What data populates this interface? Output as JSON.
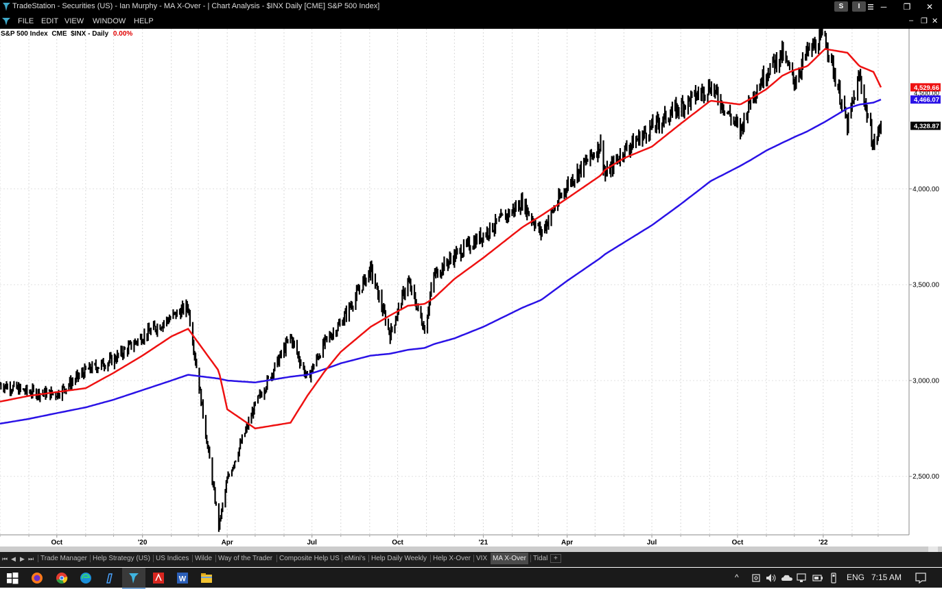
{
  "window": {
    "title": "TradeStation  - Securities (US) - Ian Murphy - MA X-Over - | Chart Analysis - $INX Daily [CME] S&P 500 Index]",
    "btn_s": "S",
    "btn_i": "I",
    "minimize": "─",
    "restore": "❐",
    "close": "✕"
  },
  "menu": {
    "items": [
      "FILE",
      "EDIT",
      "VIEW",
      "WINDOW",
      "HELP"
    ],
    "inner_minimize": "–",
    "inner_restore": "❐",
    "inner_close": "✕"
  },
  "symbol": {
    "name": "S&P 500 Index",
    "exchange": "CME",
    "ticker_interval": "$INX - Daily",
    "change": "0.00%"
  },
  "colors": {
    "price": "#000000",
    "ma_fast": "#ee1111",
    "ma_slow": "#2a12e6",
    "last_bg": "#000000"
  },
  "chart_data": {
    "type": "line",
    "title": "S&P 500 Index  CME  $INX - Daily",
    "xlabel": "",
    "ylabel": "",
    "ylim": [
      2195,
      4835
    ],
    "x_ticks": [
      "Oct",
      "'20",
      "Apr",
      "Jul",
      "Oct",
      "'21",
      "Apr",
      "Jul",
      "Oct",
      "'22"
    ],
    "y_ticks": [
      "2,500.00",
      "3,000.00",
      "3,500.00",
      "4,000.00"
    ],
    "x_dates": [
      "2019-08-01",
      "2019-09-01",
      "2019-10-01",
      "2019-11-01",
      "2019-12-01",
      "2020-01-01",
      "2020-02-01",
      "2020-02-19",
      "2020-03-23",
      "2020-04-01",
      "2020-05-01",
      "2020-06-08",
      "2020-06-26",
      "2020-07-15",
      "2020-08-01",
      "2020-09-02",
      "2020-09-23",
      "2020-10-12",
      "2020-10-30",
      "2020-11-09",
      "2020-12-01",
      "2021-01-01",
      "2021-02-12",
      "2021-03-04",
      "2021-04-01",
      "2021-05-07",
      "2021-05-12",
      "2021-06-01",
      "2021-07-01",
      "2021-08-01",
      "2021-09-02",
      "2021-10-04",
      "2021-10-15",
      "2021-11-01",
      "2021-11-18",
      "2021-12-01",
      "2021-12-15",
      "2022-01-03",
      "2022-01-27",
      "2022-02-09",
      "2022-02-24",
      "2022-03-04"
    ],
    "series": [
      {
        "name": "$INX",
        "values": [
          2980,
          2940,
          2930,
          3050,
          3110,
          3230,
          3330,
          3386,
          2237,
          2480,
          2870,
          3230,
          3010,
          3200,
          3300,
          3580,
          3240,
          3520,
          3270,
          3550,
          3650,
          3760,
          3930,
          3770,
          4020,
          4230,
          4070,
          4200,
          4320,
          4430,
          4537,
          4300,
          4470,
          4610,
          4705,
          4560,
          4710,
          4796,
          4330,
          4590,
          4225,
          4328.87
        ]
      },
      {
        "name": "",
        "values": [
          2890,
          2920,
          2940,
          2960,
          3040,
          3130,
          3230,
          3270,
          3050,
          2850,
          2750,
          2780,
          2920,
          3050,
          3150,
          3280,
          3340,
          3390,
          3400,
          3430,
          3530,
          3640,
          3800,
          3860,
          3950,
          4070,
          4100,
          4160,
          4220,
          4340,
          4460,
          4440,
          4470,
          4520,
          4590,
          4620,
          4640,
          4730,
          4710,
          4640,
          4610,
          4529.66
        ]
      },
      {
        "name": "",
        "values": [
          2775,
          2800,
          2830,
          2860,
          2900,
          2950,
          3000,
          3030,
          3010,
          3000,
          2990,
          3020,
          3030,
          3060,
          3090,
          3130,
          3140,
          3160,
          3170,
          3190,
          3220,
          3280,
          3380,
          3420,
          3520,
          3640,
          3660,
          3720,
          3810,
          3920,
          4040,
          4120,
          4150,
          4200,
          4240,
          4270,
          4300,
          4350,
          4420,
          4440,
          4450,
          4466.07
        ]
      }
    ],
    "last_labels": {
      "ma_fast": "4,529.66",
      "price": "4,500.00",
      "ma_slow": "4,466.07",
      "last": "4,328.87"
    }
  },
  "tabs": [
    "Trade Manager",
    "Help Strategy (US)",
    "US Indices",
    "Wilde",
    "Way of the Trader",
    "Composite Help US",
    "eMini's",
    "Help Daily Weekly",
    "Help X-Over",
    "VIX",
    "MA X-Over",
    "Tidal",
    "+"
  ],
  "tab_nav": [
    "⏮",
    "◀",
    "▶",
    "⏭"
  ],
  "taskbar": {
    "language": "ENG",
    "time": "7:15 AM",
    "up_arrow": "^"
  }
}
